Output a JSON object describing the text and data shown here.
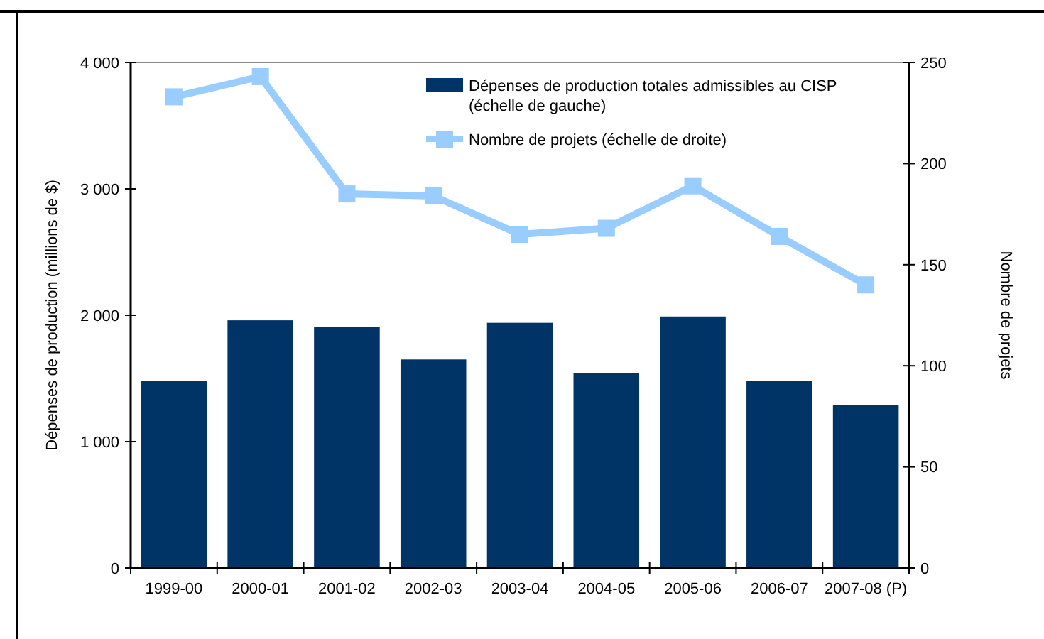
{
  "chart_data": {
    "type": "bar",
    "categories": [
      "1999-00",
      "2000-01",
      "2001-02",
      "2002-03",
      "2003-04",
      "2004-05",
      "2005-06",
      "2006-07",
      "2007-08 (P)"
    ],
    "ylabel": "Dépenses de production (millions de $)",
    "y2label": "Nombre de projets",
    "ylim": [
      0,
      4000
    ],
    "yticks": [
      0,
      {
        "value": 1000,
        "label": "1 000"
      },
      {
        "value": 2000,
        "label": "2 000"
      },
      {
        "value": 3000,
        "label": "3 000"
      },
      {
        "value": 4000,
        "label": "4 000"
      }
    ],
    "y2lim": [
      0,
      250
    ],
    "y2ticks": [
      0,
      50,
      100,
      150,
      200,
      250
    ],
    "grid": false,
    "legend": "top right",
    "marker": "square",
    "series": [
      {
        "name": "Dépenses de production totales admissibles au CISP (échelle de gauche)",
        "color": "#003366",
        "values": [
          1480,
          1960,
          1910,
          1650,
          1940,
          1540,
          1990,
          1480,
          1290
        ]
      },
      {
        "name": "Nombre de projets (échelle de droite)",
        "type": "line",
        "axis": "y2",
        "color": "#99ccff",
        "values": [
          233,
          243,
          185,
          184,
          165,
          168,
          189,
          164,
          140
        ]
      }
    ]
  }
}
